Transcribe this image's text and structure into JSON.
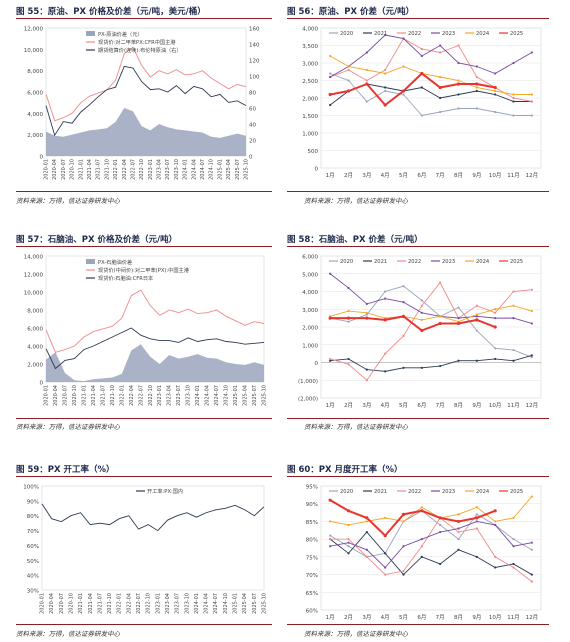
{
  "source_text": "资料来源：万得，信达证券研发中心",
  "chart_data": [
    {
      "id": "c55",
      "type": "area",
      "title": "图 55：原油、PX 价格及价差（元/吨，美元/桶）",
      "categories": [
        "2020-01",
        "2020-04",
        "2020-07",
        "2020-10",
        "2021-01",
        "2021-04",
        "2021-07",
        "2021-10",
        "2022-01",
        "2022-04",
        "2022-07",
        "2022-10",
        "2023-01",
        "2023-04",
        "2023-07",
        "2023-10",
        "2024-01",
        "2024-04",
        "2024-07",
        "2024-10",
        "2025-01",
        "2025-04",
        "2025-07",
        "2025-10"
      ],
      "ylim": [
        0,
        12000
      ],
      "yticks": [
        0,
        2000,
        4000,
        6000,
        8000,
        10000,
        12000
      ],
      "ylim2": [
        0,
        160
      ],
      "yticks2": [
        0,
        20,
        40,
        60,
        80,
        100,
        120,
        140,
        160
      ],
      "legend_position": "top-left",
      "series": [
        {
          "name": "PX-原油价差（元）",
          "kind": "area",
          "color": "#9aa5bd",
          "values": [
            2300,
            1900,
            1800,
            2000,
            2200,
            2400,
            2500,
            2600,
            3200,
            4500,
            4200,
            2800,
            2400,
            3000,
            2700,
            2500,
            2400,
            2300,
            2200,
            1800,
            1700,
            1900,
            2100,
            1900
          ]
        },
        {
          "name": "现货价:对二甲苯PX:CFR中国主港",
          "kind": "line",
          "color": "#f08a8a",
          "values": [
            5800,
            3300,
            3600,
            4000,
            5000,
            5600,
            5900,
            6200,
            7100,
            9600,
            10200,
            8500,
            7400,
            8000,
            7700,
            8100,
            7600,
            7700,
            8000,
            7300,
            6800,
            6300,
            6700,
            6500
          ]
        },
        {
          "name": "期货结算价(连续):布伦特原油（右）",
          "kind": "line",
          "axis": "right",
          "color": "#2c3a55",
          "values": [
            63,
            26,
            43,
            41,
            55,
            64,
            74,
            83,
            86,
            112,
            110,
            93,
            83,
            84,
            80,
            88,
            78,
            87,
            84,
            74,
            77,
            67,
            69,
            63
          ]
        }
      ]
    },
    {
      "id": "c56",
      "type": "line",
      "title": "图 56：原油、PX 价差（元/吨）",
      "categories": [
        "1月",
        "2月",
        "3月",
        "4月",
        "5月",
        "6月",
        "7月",
        "8月",
        "9月",
        "10月",
        "11月",
        "12月"
      ],
      "ylim": [
        0,
        4000
      ],
      "yticks": [
        0,
        500,
        1000,
        1500,
        2000,
        2500,
        3000,
        3500,
        4000
      ],
      "legend_position": "top",
      "series": [
        {
          "name": "2020",
          "color": "#9aa5bd",
          "values": [
            2700,
            2500,
            1900,
            2200,
            2100,
            1500,
            1600,
            1700,
            1700,
            1600,
            1500,
            1500
          ]
        },
        {
          "name": "2021",
          "color": "#2c3a55",
          "values": [
            1800,
            2200,
            2400,
            2300,
            2200,
            2300,
            2000,
            2100,
            2200,
            2100,
            1900,
            1900
          ]
        },
        {
          "name": "2022",
          "color": "#f08a8a",
          "values": [
            2600,
            2800,
            2500,
            2800,
            3700,
            3400,
            3300,
            3500,
            2600,
            2300,
            2000,
            1900
          ]
        },
        {
          "name": "2023",
          "color": "#7a4aa2",
          "values": [
            2600,
            2900,
            3300,
            3800,
            3700,
            3200,
            3500,
            3000,
            2900,
            2700,
            3000,
            3300
          ]
        },
        {
          "name": "2024",
          "color": "#f3a623",
          "values": [
            3200,
            2900,
            2800,
            2700,
            2900,
            2700,
            2600,
            2500,
            2300,
            2200,
            2100,
            2100
          ]
        },
        {
          "name": "2025",
          "color": "#e8352f",
          "values": [
            2100,
            2200,
            2400,
            1800,
            2200,
            2700,
            2300,
            2400,
            2400,
            2300,
            null,
            null
          ]
        }
      ]
    },
    {
      "id": "c57",
      "type": "area",
      "title": "图 57：石脑油、PX 价格及价差（元/吨）",
      "categories": [
        "2020-01",
        "2020-04",
        "2020-07",
        "2020-10",
        "2021-01",
        "2021-04",
        "2021-07",
        "2021-10",
        "2022-01",
        "2022-04",
        "2022-07",
        "2022-10",
        "2023-01",
        "2023-04",
        "2023-07",
        "2023-10",
        "2024-01",
        "2024-04",
        "2024-07",
        "2024-10",
        "2025-01",
        "2025-04",
        "2025-07",
        "2025-10"
      ],
      "ylim": [
        0,
        14000
      ],
      "yticks": [
        0,
        2000,
        4000,
        6000,
        8000,
        10000,
        12000,
        14000
      ],
      "legend_position": "top-left",
      "series": [
        {
          "name": "PX-石脑油价差",
          "kind": "area",
          "color": "#9aa5bd",
          "values": [
            2500,
            3300,
            1000,
            200,
            100,
            300,
            400,
            500,
            900,
            3500,
            4200,
            2800,
            2000,
            3000,
            2600,
            2800,
            3100,
            2700,
            2600,
            2200,
            2000,
            1900,
            2200,
            1900
          ]
        },
        {
          "name": "现货价(中间价):对二甲苯(PX):中国主港",
          "kind": "line",
          "color": "#f08a8a",
          "values": [
            5800,
            3300,
            3600,
            4000,
            5000,
            5600,
            5900,
            6200,
            7100,
            9600,
            10200,
            8500,
            7400,
            8000,
            7700,
            8100,
            7600,
            7700,
            8000,
            7300,
            6800,
            6300,
            6700,
            6500
          ]
        },
        {
          "name": "现货价:石脑油:CFR日本",
          "kind": "line",
          "color": "#2c3a55",
          "values": [
            3700,
            1500,
            2400,
            2600,
            3600,
            4000,
            4500,
            5000,
            5500,
            6000,
            5200,
            4800,
            4600,
            4600,
            4400,
            4900,
            4500,
            4700,
            4800,
            4500,
            4400,
            4200,
            4300,
            4400
          ]
        }
      ]
    },
    {
      "id": "c58",
      "type": "line",
      "title": "图 58：石脑油、PX 价差（元/吨）",
      "categories": [
        "1月",
        "2月",
        "3月",
        "4月",
        "5月",
        "6月",
        "7月",
        "8月",
        "9月",
        "10月",
        "11月",
        "12月"
      ],
      "ylim": [
        -2000,
        6000
      ],
      "yticks": [
        -2000,
        -1000,
        0,
        1000,
        2000,
        3000,
        4000,
        5000,
        6000
      ],
      "ytick_labels": [
        "(2,000)",
        "(1,000)",
        "0",
        "1,000",
        "2,000",
        "3,000",
        "4,000",
        "5,000",
        "6,000"
      ],
      "legend_position": "top",
      "series": [
        {
          "name": "2020",
          "color": "#9aa5bd",
          "values": [
            2500,
            2300,
            2700,
            4000,
            4300,
            3500,
            2600,
            3100,
            1800,
            800,
            700,
            300
          ]
        },
        {
          "name": "2021",
          "color": "#2c3a55",
          "values": [
            100,
            200,
            -400,
            -500,
            -300,
            -300,
            -200,
            100,
            100,
            200,
            100,
            400
          ]
        },
        {
          "name": "2022",
          "color": "#f08a8a",
          "values": [
            200,
            -100,
            -1000,
            500,
            1500,
            3200,
            4500,
            2500,
            3200,
            2800,
            4000,
            4100
          ]
        },
        {
          "name": "2023",
          "color": "#7a4aa2",
          "values": [
            5000,
            4200,
            3300,
            3600,
            3400,
            2800,
            2600,
            2500,
            2600,
            2500,
            2500,
            2200
          ]
        },
        {
          "name": "2024",
          "color": "#f3a623",
          "values": [
            2600,
            2900,
            2800,
            2500,
            2600,
            2400,
            2600,
            2300,
            2700,
            3000,
            3200,
            2900
          ]
        },
        {
          "name": "2025",
          "color": "#e8352f",
          "values": [
            2500,
            2500,
            2500,
            2400,
            2600,
            1800,
            2200,
            2200,
            2400,
            2000,
            null,
            null
          ]
        }
      ]
    },
    {
      "id": "c59",
      "type": "line",
      "title": "图 59：PX 开工率（%）",
      "categories": [
        "2020-01",
        "2020-04",
        "2020-07",
        "2020-10",
        "2021-01",
        "2021-04",
        "2021-07",
        "2021-10",
        "2022-01",
        "2022-04",
        "2022-07",
        "2022-10",
        "2023-01",
        "2023-04",
        "2023-07",
        "2023-10",
        "2024-01",
        "2024-04",
        "2024-07",
        "2024-10",
        "2025-01",
        "2025-04",
        "2025-07",
        "2025-10"
      ],
      "ylim": [
        30,
        100
      ],
      "yticks": [
        30,
        40,
        50,
        60,
        70,
        80,
        90,
        100
      ],
      "ytick_labels": [
        "30%",
        "40%",
        "50%",
        "60%",
        "70%",
        "80%",
        "90%",
        "100%"
      ],
      "legend_position": "top",
      "series": [
        {
          "name": "开工率:PX:国内",
          "color": "#2c3a55",
          "values": [
            88,
            78,
            76,
            80,
            82,
            74,
            75,
            74,
            78,
            80,
            71,
            74,
            70,
            77,
            80,
            82,
            79,
            82,
            84,
            85,
            87,
            84,
            80,
            86
          ]
        }
      ]
    },
    {
      "id": "c60",
      "type": "line",
      "title": "图 60：PX 月度开工率（%）",
      "categories": [
        "1月",
        "2月",
        "3月",
        "4月",
        "5月",
        "6月",
        "7月",
        "8月",
        "9月",
        "10月",
        "11月",
        "12月"
      ],
      "ylim": [
        60,
        95
      ],
      "yticks": [
        60,
        65,
        70,
        75,
        80,
        85,
        90,
        95
      ],
      "ytick_labels": [
        "60%",
        "65%",
        "70%",
        "75%",
        "80%",
        "85%",
        "90%",
        "95%"
      ],
      "legend_position": "top",
      "series": [
        {
          "name": "2020",
          "color": "#9aa5bd",
          "values": [
            81,
            78,
            75,
            76,
            85,
            88,
            84,
            80,
            87,
            84,
            80,
            77
          ]
        },
        {
          "name": "2021",
          "color": "#2c3a55",
          "values": [
            80,
            76,
            82,
            76,
            70,
            75,
            73,
            77,
            75,
            72,
            73,
            70
          ]
        },
        {
          "name": "2022",
          "color": "#f08a8a",
          "values": [
            80,
            80,
            75,
            70,
            71,
            78,
            86,
            82,
            83,
            75,
            72,
            68
          ]
        },
        {
          "name": "2023",
          "color": "#7a4aa2",
          "values": [
            78,
            79,
            77,
            72,
            78,
            80,
            82,
            83,
            85,
            84,
            78,
            79
          ]
        },
        {
          "name": "2024",
          "color": "#f3a623",
          "values": [
            85,
            84,
            85,
            86,
            85,
            89,
            86,
            87,
            89,
            85,
            86,
            92
          ]
        },
        {
          "name": "2025",
          "color": "#e8352f",
          "values": [
            91,
            88,
            86,
            81,
            87,
            88,
            86,
            85,
            86,
            88,
            null,
            null
          ]
        }
      ]
    }
  ]
}
